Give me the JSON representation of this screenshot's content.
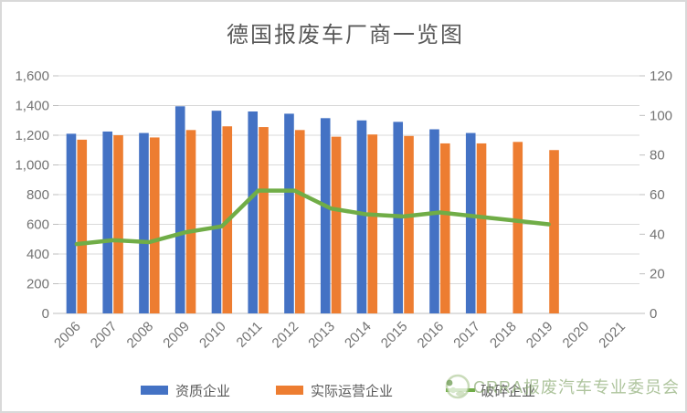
{
  "page": {
    "background": "#ffffff",
    "border_color": "#d9d9d9"
  },
  "chart_data": {
    "type": "combo",
    "title": "德国报废车厂商一览图",
    "title_color": "#595959",
    "categories": [
      "2006",
      "2007",
      "2008",
      "2009",
      "2010",
      "2011",
      "2012",
      "2013",
      "2014",
      "2015",
      "2016",
      "2017",
      "2018",
      "2019",
      "2020",
      "2021"
    ],
    "series": [
      {
        "name": "资质企业",
        "key": "qualified-enterprises-bar",
        "type": "bar",
        "axis": "left",
        "color": "#4472C4",
        "values": [
          1210,
          1225,
          1215,
          1395,
          1365,
          1360,
          1345,
          1315,
          1300,
          1290,
          1240,
          1215,
          null,
          null,
          null,
          null
        ]
      },
      {
        "name": "实际运营企业",
        "key": "operating-enterprises-bar",
        "type": "bar",
        "axis": "left",
        "color": "#ED7D31",
        "values": [
          1170,
          1200,
          1185,
          1235,
          1260,
          1255,
          1235,
          1190,
          1205,
          1195,
          1145,
          1145,
          1155,
          1100,
          null,
          null
        ]
      },
      {
        "name": "破碎企业",
        "key": "shredder-enterprises-line",
        "type": "line",
        "axis": "right",
        "color": "#70AD47",
        "values": [
          35,
          37,
          36,
          41,
          44,
          62,
          62,
          53,
          50,
          49,
          51,
          49,
          47,
          45,
          null,
          null
        ]
      }
    ],
    "axes": {
      "left": {
        "min": 0,
        "max": 1600,
        "tick_values": [
          0,
          200,
          400,
          600,
          800,
          1000,
          1200,
          1400,
          1600
        ],
        "tick_labels": [
          "0",
          "200",
          "400",
          "600",
          "800",
          "1,000",
          "1,200",
          "1,400",
          "1,600"
        ]
      },
      "right": {
        "min": 0,
        "max": 120,
        "tick_values": [
          0,
          20,
          40,
          60,
          80,
          100,
          120
        ],
        "tick_labels": [
          "0",
          "20",
          "40",
          "60",
          "80",
          "100",
          "120"
        ]
      }
    },
    "grid": true,
    "legend_position": "bottom",
    "colors": {
      "grid": "#d9d9d9",
      "axis_line": "#bfbfbf",
      "tick_text": "#737373",
      "legend_text": "#595959"
    }
  },
  "watermark": {
    "text": "CRRA报废汽车专业委员会",
    "color": "#8fae78"
  }
}
